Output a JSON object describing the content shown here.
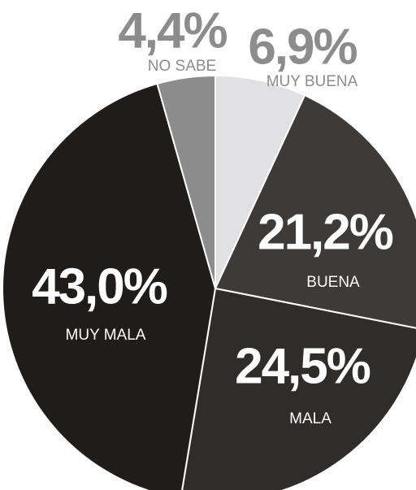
{
  "chart_data": {
    "type": "pie",
    "categories": [
      "MUY BUENA",
      "BUENA",
      "MALA",
      "MUY MALA",
      "NO SABE"
    ],
    "values": [
      6.9,
      21.2,
      24.5,
      43.0,
      4.4
    ],
    "value_labels": [
      "6,9%",
      "21,2%",
      "24,5%",
      "43,0%",
      "4,4%"
    ],
    "colors": [
      "#e1e1e3",
      "#3e3a3a",
      "#2f2c2c",
      "#1f1c1c",
      "#8c8c8c"
    ]
  }
}
